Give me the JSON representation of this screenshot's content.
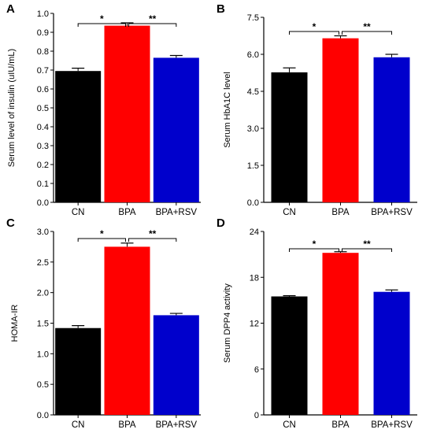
{
  "chart_data": [
    {
      "panel": "A",
      "type": "bar",
      "categories": [
        "CN",
        "BPA",
        "BPA+RSV"
      ],
      "values": [
        0.695,
        0.935,
        0.765
      ],
      "errors": [
        0.015,
        0.015,
        0.012
      ],
      "ylabel": "Serum level of insulin (uIU/mL)",
      "ylim": [
        0,
        1.0
      ],
      "yticks": [
        "0.0",
        "0.1",
        "0.2",
        "0.3",
        "0.4",
        "0.5",
        "0.6",
        "0.7",
        "0.8",
        "0.9",
        "1.0"
      ],
      "significance": [
        {
          "from": 0,
          "to": 1,
          "label": "*"
        },
        {
          "from": 1,
          "to": 2,
          "label": "**"
        }
      ]
    },
    {
      "panel": "B",
      "type": "bar",
      "categories": [
        "CN",
        "BPA",
        "BPA+RSV"
      ],
      "values": [
        5.27,
        6.65,
        5.88
      ],
      "errors": [
        0.18,
        0.1,
        0.12
      ],
      "ylabel": "Serum HbA1C level",
      "ylim": [
        0,
        7.5
      ],
      "yticks": [
        "0.0",
        "1.5",
        "3.0",
        "4.5",
        "6.0",
        "7.5"
      ],
      "significance": [
        {
          "from": 0,
          "to": 1,
          "label": "*"
        },
        {
          "from": 1,
          "to": 2,
          "label": "**"
        }
      ]
    },
    {
      "panel": "C",
      "type": "bar",
      "categories": [
        "CN",
        "BPA",
        "BPA+RSV"
      ],
      "values": [
        1.42,
        2.75,
        1.63
      ],
      "errors": [
        0.04,
        0.06,
        0.03
      ],
      "ylabel": "HOMA-IR",
      "ylim": [
        0,
        3.0
      ],
      "yticks": [
        "0.0",
        "0.5",
        "1.0",
        "1.5",
        "2.0",
        "2.5",
        "3.0"
      ],
      "significance": [
        {
          "from": 0,
          "to": 1,
          "label": "*"
        },
        {
          "from": 1,
          "to": 2,
          "label": "**"
        }
      ]
    },
    {
      "panel": "D",
      "type": "bar",
      "categories": [
        "CN",
        "BPA",
        "BPA+RSV"
      ],
      "values": [
        15.5,
        21.2,
        16.1
      ],
      "errors": [
        0.1,
        0.15,
        0.25
      ],
      "ylabel": "Serum DPP4 activity",
      "ylim": [
        0,
        24
      ],
      "yticks": [
        "0",
        "6",
        "12",
        "18",
        "24"
      ],
      "significance": [
        {
          "from": 0,
          "to": 1,
          "label": "*"
        },
        {
          "from": 1,
          "to": 2,
          "label": "**"
        }
      ]
    }
  ],
  "colors": {
    "CN": "#000000",
    "BPA": "#ff0000",
    "BPA+RSV": "#0000cc"
  }
}
